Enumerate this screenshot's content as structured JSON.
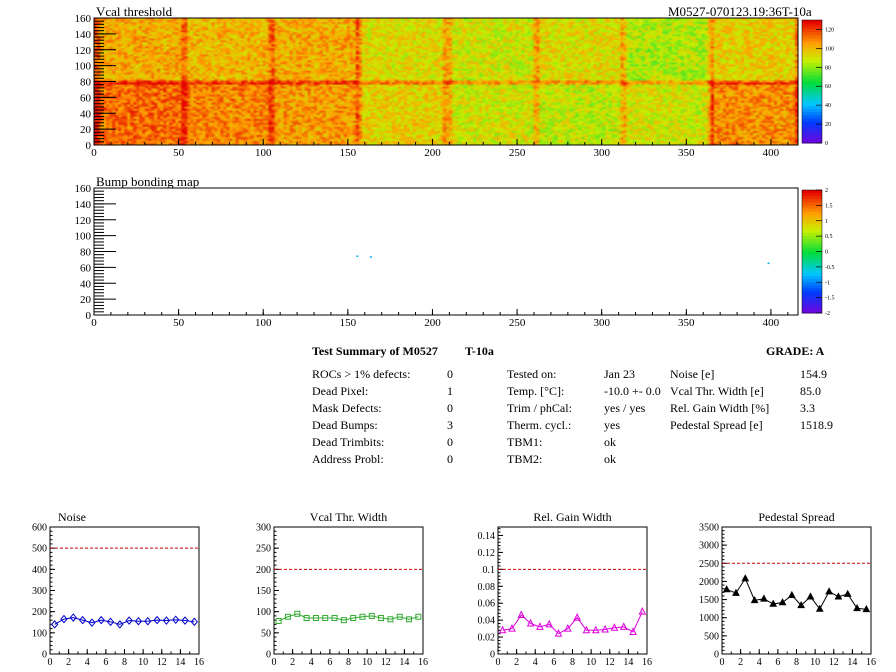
{
  "header": {
    "module_id": "M0527-070123.19:36T-10a"
  },
  "maps": [
    {
      "title": "Vcal threshold",
      "x_ticks": [
        "0",
        "50",
        "100",
        "150",
        "200",
        "250",
        "300",
        "350",
        "400"
      ],
      "y_ticks": [
        "0",
        "20",
        "40",
        "60",
        "80",
        "100",
        "120",
        "140",
        "160"
      ],
      "z_ticks": [
        "0",
        "20",
        "40",
        "60",
        "80",
        "100",
        "120"
      ],
      "z_range": [
        0,
        130
      ]
    },
    {
      "title": "Bump bonding map",
      "x_ticks": [
        "0",
        "50",
        "100",
        "150",
        "200",
        "250",
        "300",
        "350",
        "400"
      ],
      "y_ticks": [
        "0",
        "20",
        "40",
        "60",
        "80",
        "100",
        "120",
        "140",
        "160"
      ],
      "z_ticks": [
        "-2",
        "-1.5",
        "-1",
        "-0.5",
        "0",
        "0.5",
        "1",
        "1.5",
        "2"
      ],
      "z_range": [
        -2,
        2
      ]
    }
  ],
  "summary": {
    "heading": "Test Summary of M0527",
    "temp_label": "T-10a",
    "grade": "GRADE:  A",
    "defects": [
      {
        "label": "ROCs > 1% defects:",
        "value": "0"
      },
      {
        "label": "Dead Pixel:",
        "value": "1"
      },
      {
        "label": "Mask Defects:",
        "value": "0"
      },
      {
        "label": "Dead Bumps:",
        "value": "3"
      },
      {
        "label": "Dead Trimbits:",
        "value": "0"
      },
      {
        "label": "Address Probl:",
        "value": "0"
      }
    ],
    "conditions": [
      {
        "label": "Tested on:",
        "value": "Jan 23"
      },
      {
        "label": "Temp. [°C]:",
        "value": "-10.0 +- 0.0"
      },
      {
        "label": "Trim / phCal:",
        "value": "yes / yes"
      },
      {
        "label": "Therm. cycl.:",
        "value": "yes"
      },
      {
        "label": "TBM1:",
        "value": "ok"
      },
      {
        "label": "TBM2:",
        "value": "ok"
      }
    ],
    "performance": [
      {
        "label": "Noise [e]",
        "value": "154.9"
      },
      {
        "label": "Vcal Thr. Width [e]",
        "value": "85.0"
      },
      {
        "label": "Rel. Gain Width [%]",
        "value": "3.3"
      },
      {
        "label": "Pedestal Spread [e]",
        "value": "1518.9"
      }
    ]
  },
  "chart_data": [
    {
      "type": "line",
      "title": "Noise",
      "x": [
        0,
        1,
        2,
        3,
        4,
        5,
        6,
        7,
        8,
        9,
        10,
        11,
        12,
        13,
        14,
        15
      ],
      "values": [
        140,
        165,
        172,
        160,
        148,
        160,
        152,
        140,
        158,
        155,
        155,
        160,
        158,
        162,
        158,
        152
      ],
      "xlim": [
        0,
        16
      ],
      "ylim": [
        0,
        600
      ],
      "x_ticks": [
        "0",
        "2",
        "4",
        "6",
        "8",
        "10",
        "12",
        "14",
        "16"
      ],
      "y_ticks": [
        "0",
        "100",
        "200",
        "300",
        "400",
        "500",
        "600"
      ],
      "threshold": 500,
      "color": "#0000cc",
      "marker": "diamond"
    },
    {
      "type": "line",
      "title": "Vcal Thr. Width",
      "x": [
        0,
        1,
        2,
        3,
        4,
        5,
        6,
        7,
        8,
        9,
        10,
        11,
        12,
        13,
        14,
        15
      ],
      "values": [
        78,
        88,
        95,
        85,
        85,
        85,
        85,
        80,
        85,
        88,
        90,
        85,
        82,
        88,
        82,
        88
      ],
      "xlim": [
        0,
        16
      ],
      "ylim": [
        0,
        300
      ],
      "x_ticks": [
        "0",
        "2",
        "4",
        "6",
        "8",
        "10",
        "12",
        "14",
        "16"
      ],
      "y_ticks": [
        "0",
        "50",
        "100",
        "150",
        "200",
        "250",
        "300"
      ],
      "threshold": 200,
      "color": "#33aa33",
      "marker": "square"
    },
    {
      "type": "line",
      "title": "Rel. Gain Width",
      "x": [
        0,
        1,
        2,
        3,
        4,
        5,
        6,
        7,
        8,
        9,
        10,
        11,
        12,
        13,
        14,
        15
      ],
      "values": [
        0.028,
        0.03,
        0.046,
        0.036,
        0.032,
        0.035,
        0.024,
        0.03,
        0.043,
        0.028,
        0.028,
        0.029,
        0.031,
        0.032,
        0.026,
        0.05
      ],
      "xlim": [
        0,
        16
      ],
      "ylim": [
        0,
        0.15
      ],
      "x_ticks": [
        "0",
        "2",
        "4",
        "6",
        "8",
        "10",
        "12",
        "14",
        "16"
      ],
      "y_ticks": [
        "0",
        "0.02",
        "0.04",
        "0.06",
        "0.08",
        "0.1",
        "0.12",
        "0.14"
      ],
      "threshold": 0.1,
      "color": "#dd00dd",
      "marker": "triangle"
    },
    {
      "type": "line",
      "title": "Pedestal Spread",
      "x": [
        0,
        1,
        2,
        3,
        4,
        5,
        6,
        7,
        8,
        9,
        10,
        11,
        12,
        13,
        14,
        15
      ],
      "values": [
        1780,
        1680,
        2080,
        1480,
        1520,
        1380,
        1420,
        1620,
        1340,
        1580,
        1240,
        1720,
        1580,
        1650,
        1260,
        1230
      ],
      "xlim": [
        0,
        16
      ],
      "ylim": [
        0,
        3500
      ],
      "x_ticks": [
        "0",
        "2",
        "4",
        "6",
        "8",
        "10",
        "12",
        "14",
        "16"
      ],
      "y_ticks": [
        "0",
        "500",
        "1000",
        "1500",
        "2000",
        "2500",
        "3000",
        "3500"
      ],
      "threshold": 2500,
      "color": "#000000",
      "marker": "star"
    }
  ]
}
